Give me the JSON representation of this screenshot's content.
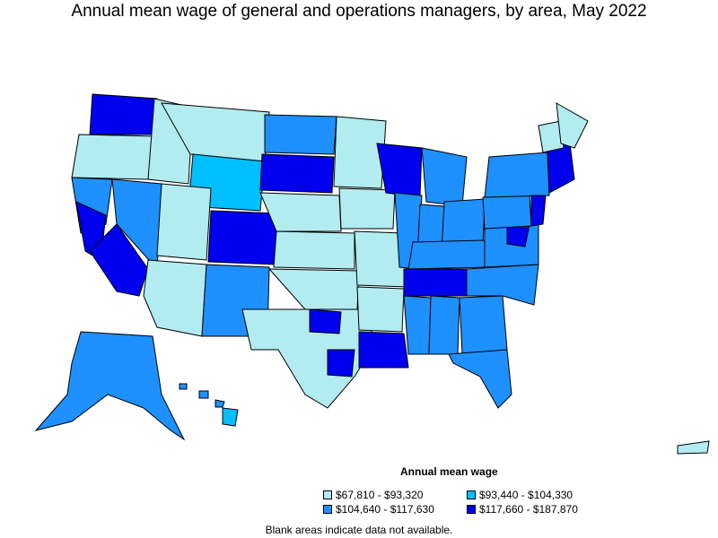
{
  "title": "Annual mean wage of general and operations managers, by area, May 2022",
  "legend": {
    "title": "Annual mean wage",
    "items": [
      {
        "label": "$67,810 - $93,320",
        "color": "#b2ecf0"
      },
      {
        "label": "$93,440 - $104,330",
        "color": "#00bfff"
      },
      {
        "label": "$104,640 - $117,630",
        "color": "#1e90ff"
      },
      {
        "label": "$117,660 - $187,870",
        "color": "#0000ee"
      }
    ]
  },
  "note": "Blank areas indicate data not available.",
  "colors": {
    "border": "#000000",
    "background": "#ffffff"
  }
}
